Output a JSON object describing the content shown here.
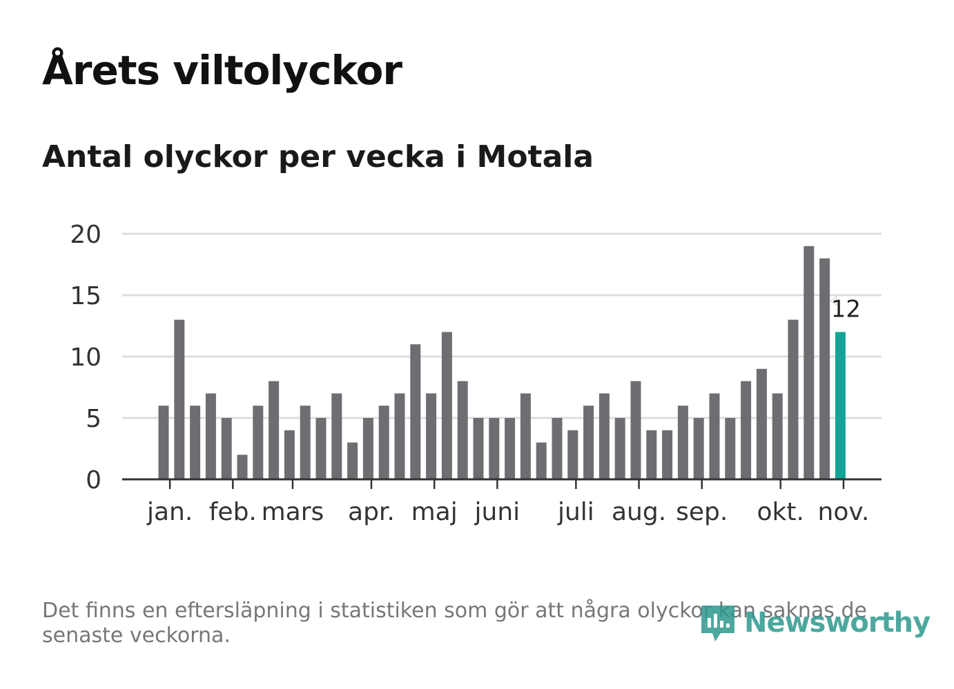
{
  "title": "Årets viltolyckor",
  "subtitle": "Antal olyckor per vecka i Motala",
  "footnote": "Det finns en eftersläpning i statistiken som gör att några olyckor kan saknas de senaste veckorna.",
  "brand": "Newsworthy",
  "colors": {
    "bar": "#6e6d72",
    "highlight": "#12a597",
    "grid": "#dddddd",
    "axis": "#333333"
  },
  "chart_data": {
    "type": "bar",
    "title": "Årets viltolyckor",
    "subtitle": "Antal olyckor per vecka i Motala",
    "xlabel": "",
    "ylabel": "",
    "ylim": [
      0,
      20
    ],
    "yticks": [
      "0",
      "5",
      "10",
      "15",
      "20"
    ],
    "grid": true,
    "weeks": [
      1,
      2,
      3,
      4,
      5,
      6,
      7,
      8,
      9,
      10,
      11,
      12,
      13,
      14,
      15,
      16,
      17,
      18,
      19,
      20,
      21,
      22,
      23,
      24,
      25,
      26,
      27,
      28,
      29,
      30,
      31,
      32,
      33,
      34,
      35,
      36,
      37,
      38,
      39,
      40,
      41,
      42,
      43,
      44
    ],
    "values": [
      6,
      13,
      6,
      7,
      5,
      2,
      6,
      8,
      4,
      6,
      5,
      7,
      3,
      5,
      6,
      7,
      11,
      7,
      12,
      8,
      5,
      5,
      5,
      7,
      3,
      5,
      4,
      6,
      7,
      5,
      8,
      4,
      4,
      6,
      5,
      7,
      5,
      8,
      9,
      7,
      13,
      19,
      18,
      12
    ],
    "highlight_index": 43,
    "highlight_label": "12",
    "month_labels": [
      {
        "label": "jan.",
        "week": 1.4
      },
      {
        "label": "feb.",
        "week": 5.4
      },
      {
        "label": "mars",
        "week": 9.2
      },
      {
        "label": "apr.",
        "week": 14.2
      },
      {
        "label": "maj",
        "week": 18.2
      },
      {
        "label": "juni",
        "week": 22.2
      },
      {
        "label": "juli",
        "week": 27.2
      },
      {
        "label": "aug.",
        "week": 31.2
      },
      {
        "label": "sep.",
        "week": 35.2
      },
      {
        "label": "okt.",
        "week": 40.2
      },
      {
        "label": "nov.",
        "week": 44.2
      }
    ]
  }
}
